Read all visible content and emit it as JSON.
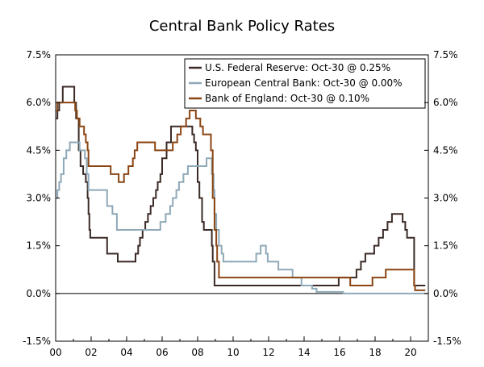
{
  "chart_data": {
    "type": "line",
    "title": "Central Bank Policy Rates",
    "xlabel": "",
    "ylabel": "",
    "xlim": [
      2000,
      2021
    ],
    "ylim": [
      -1.5,
      7.5
    ],
    "x_ticks": [
      {
        "value": 2000,
        "label": "00"
      },
      {
        "value": 2002,
        "label": "02"
      },
      {
        "value": 2004,
        "label": "04"
      },
      {
        "value": 2006,
        "label": "06"
      },
      {
        "value": 2008,
        "label": "08"
      },
      {
        "value": 2010,
        "label": "10"
      },
      {
        "value": 2012,
        "label": "12"
      },
      {
        "value": 2014,
        "label": "14"
      },
      {
        "value": 2016,
        "label": "16"
      },
      {
        "value": 2018,
        "label": "18"
      },
      {
        "value": 2020,
        "label": "20"
      }
    ],
    "y_ticks": [
      {
        "value": 7.5,
        "label": "7.5%"
      },
      {
        "value": 6.0,
        "label": "6.0%"
      },
      {
        "value": 4.5,
        "label": "4.5%"
      },
      {
        "value": 3.0,
        "label": "3.0%"
      },
      {
        "value": 1.5,
        "label": "1.5%"
      },
      {
        "value": 0.0,
        "label": "0.0%"
      },
      {
        "value": -1.5,
        "label": "-1.5%"
      }
    ],
    "legend_position": "top-right",
    "series": [
      {
        "name": "U.S. Federal Reserve: Oct-30 @ 0.25%",
        "color": "#3b2b26",
        "points": [
          [
            2000.0,
            5.5
          ],
          [
            2000.1,
            5.75
          ],
          [
            2000.2,
            6.0
          ],
          [
            2000.4,
            6.5
          ],
          [
            2001.0,
            6.5
          ],
          [
            2001.05,
            6.0
          ],
          [
            2001.15,
            5.5
          ],
          [
            2001.3,
            4.5
          ],
          [
            2001.4,
            4.0
          ],
          [
            2001.55,
            3.75
          ],
          [
            2001.7,
            3.5
          ],
          [
            2001.8,
            3.0
          ],
          [
            2001.85,
            2.5
          ],
          [
            2001.9,
            2.0
          ],
          [
            2001.95,
            1.75
          ],
          [
            2002.9,
            1.25
          ],
          [
            2003.5,
            1.0
          ],
          [
            2004.5,
            1.25
          ],
          [
            2004.65,
            1.5
          ],
          [
            2004.75,
            1.75
          ],
          [
            2004.9,
            2.0
          ],
          [
            2005.05,
            2.25
          ],
          [
            2005.2,
            2.5
          ],
          [
            2005.35,
            2.75
          ],
          [
            2005.5,
            3.0
          ],
          [
            2005.65,
            3.25
          ],
          [
            2005.75,
            3.5
          ],
          [
            2005.9,
            3.75
          ],
          [
            2006.0,
            4.25
          ],
          [
            2006.25,
            4.75
          ],
          [
            2006.5,
            5.25
          ],
          [
            2007.7,
            5.0
          ],
          [
            2007.8,
            4.75
          ],
          [
            2007.9,
            4.5
          ],
          [
            2008.0,
            3.5
          ],
          [
            2008.1,
            3.0
          ],
          [
            2008.25,
            2.25
          ],
          [
            2008.35,
            2.0
          ],
          [
            2008.8,
            1.5
          ],
          [
            2008.85,
            1.0
          ],
          [
            2008.95,
            0.25
          ],
          [
            2015.95,
            0.5
          ],
          [
            2016.95,
            0.75
          ],
          [
            2017.2,
            1.0
          ],
          [
            2017.45,
            1.25
          ],
          [
            2017.95,
            1.5
          ],
          [
            2018.2,
            1.75
          ],
          [
            2018.45,
            2.0
          ],
          [
            2018.7,
            2.25
          ],
          [
            2018.95,
            2.5
          ],
          [
            2019.55,
            2.25
          ],
          [
            2019.7,
            2.0
          ],
          [
            2019.8,
            1.75
          ],
          [
            2020.2,
            0.25
          ],
          [
            2020.83,
            0.25
          ]
        ]
      },
      {
        "name": "European Central Bank: Oct-30 @ 0.00%",
        "color": "#8fa9b8",
        "points": [
          [
            2000.0,
            3.0
          ],
          [
            2000.1,
            3.25
          ],
          [
            2000.2,
            3.5
          ],
          [
            2000.3,
            3.75
          ],
          [
            2000.45,
            4.25
          ],
          [
            2000.6,
            4.5
          ],
          [
            2000.8,
            4.75
          ],
          [
            2001.35,
            4.5
          ],
          [
            2001.65,
            4.25
          ],
          [
            2001.75,
            3.75
          ],
          [
            2001.85,
            3.25
          ],
          [
            2002.9,
            2.75
          ],
          [
            2003.2,
            2.5
          ],
          [
            2003.45,
            2.0
          ],
          [
            2005.9,
            2.25
          ],
          [
            2006.2,
            2.5
          ],
          [
            2006.45,
            2.75
          ],
          [
            2006.6,
            3.0
          ],
          [
            2006.8,
            3.25
          ],
          [
            2006.95,
            3.5
          ],
          [
            2007.2,
            3.75
          ],
          [
            2007.45,
            4.0
          ],
          [
            2008.5,
            4.25
          ],
          [
            2008.8,
            3.75
          ],
          [
            2008.9,
            3.25
          ],
          [
            2008.95,
            2.5
          ],
          [
            2009.05,
            2.0
          ],
          [
            2009.2,
            1.5
          ],
          [
            2009.35,
            1.25
          ],
          [
            2009.45,
            1.0
          ],
          [
            2011.3,
            1.25
          ],
          [
            2011.55,
            1.5
          ],
          [
            2011.85,
            1.25
          ],
          [
            2011.95,
            1.0
          ],
          [
            2012.55,
            0.75
          ],
          [
            2013.35,
            0.5
          ],
          [
            2013.85,
            0.25
          ],
          [
            2014.45,
            0.15
          ],
          [
            2014.7,
            0.05
          ],
          [
            2016.2,
            0.0
          ],
          [
            2020.83,
            0.0
          ]
        ]
      },
      {
        "name": "Bank of England: Oct-30 @ 0.10%",
        "color": "#8b4513",
        "points": [
          [
            2000.0,
            5.75
          ],
          [
            2000.1,
            6.0
          ],
          [
            2001.1,
            5.75
          ],
          [
            2001.2,
            5.5
          ],
          [
            2001.35,
            5.25
          ],
          [
            2001.6,
            5.0
          ],
          [
            2001.7,
            4.75
          ],
          [
            2001.8,
            4.5
          ],
          [
            2001.85,
            4.0
          ],
          [
            2003.1,
            3.75
          ],
          [
            2003.55,
            3.5
          ],
          [
            2003.85,
            3.75
          ],
          [
            2004.1,
            4.0
          ],
          [
            2004.35,
            4.25
          ],
          [
            2004.45,
            4.5
          ],
          [
            2004.6,
            4.75
          ],
          [
            2005.6,
            4.5
          ],
          [
            2006.6,
            4.75
          ],
          [
            2006.85,
            5.0
          ],
          [
            2007.05,
            5.25
          ],
          [
            2007.35,
            5.5
          ],
          [
            2007.55,
            5.75
          ],
          [
            2007.9,
            5.5
          ],
          [
            2008.15,
            5.25
          ],
          [
            2008.3,
            5.0
          ],
          [
            2008.75,
            4.5
          ],
          [
            2008.85,
            3.0
          ],
          [
            2008.95,
            2.0
          ],
          [
            2009.05,
            1.5
          ],
          [
            2009.1,
            1.0
          ],
          [
            2009.2,
            0.5
          ],
          [
            2016.6,
            0.25
          ],
          [
            2017.85,
            0.5
          ],
          [
            2018.6,
            0.75
          ],
          [
            2020.2,
            0.25
          ],
          [
            2020.25,
            0.1
          ],
          [
            2020.83,
            0.1
          ]
        ]
      }
    ]
  }
}
